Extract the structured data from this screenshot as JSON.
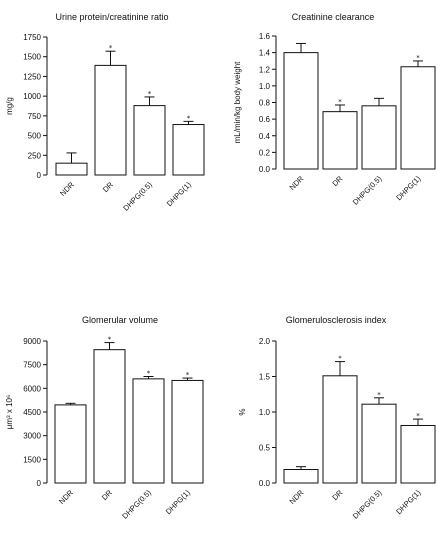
{
  "chart_data": [
    {
      "type": "bar",
      "title": "Urine protein/creatinine ratio",
      "ylabel": "mg/g",
      "xlabel": "",
      "categories": [
        "NDR",
        "DR",
        "DHPG(0.5)",
        "DHPG(1)"
      ],
      "values": [
        150,
        1390,
        880,
        640
      ],
      "errors": [
        130,
        180,
        110,
        40
      ],
      "significance": [
        "",
        "*",
        "*",
        "*"
      ],
      "ylim": [
        0,
        1750
      ],
      "yticks": [
        "0",
        "250",
        "500",
        "750",
        "1000",
        "1250",
        "1500",
        "1750"
      ]
    },
    {
      "type": "bar",
      "title": "Creatinine clearance",
      "ylabel": "mL/min/kg body weight",
      "xlabel": "",
      "categories": [
        "NDR",
        "DR",
        "DHPG(0.5)",
        "DHPG(1)"
      ],
      "values": [
        1.4,
        0.69,
        0.76,
        1.23
      ],
      "errors": [
        0.11,
        0.08,
        0.09,
        0.07
      ],
      "significance": [
        "",
        "*",
        "",
        "*"
      ],
      "ylim": [
        0,
        1.6
      ],
      "yticks": [
        "0.0",
        "0.2",
        "0.4",
        "0.6",
        "0.8",
        "1.0",
        "1.2",
        "1.4",
        "1.6"
      ]
    },
    {
      "type": "bar",
      "title": "Glomerular volume",
      "ylabel": "μm³ x 10⁶",
      "xlabel": "",
      "categories": [
        "NDR",
        "DR",
        "DHPG(0.5)",
        "DHPG(1)"
      ],
      "values": [
        4950,
        8450,
        6600,
        6500
      ],
      "errors": [
        100,
        450,
        150,
        150
      ],
      "significance": [
        "",
        "*",
        "*",
        "*"
      ],
      "ylim": [
        0,
        9000
      ],
      "yticks": [
        "0",
        "1500",
        "3000",
        "4500",
        "6000",
        "7500",
        "9000"
      ]
    },
    {
      "type": "bar",
      "title": "Glomerulosclerosis index",
      "ylabel": "%",
      "xlabel": "",
      "categories": [
        "NDR",
        "DR",
        "DHPG(0.5)",
        "DHPG(1)"
      ],
      "values": [
        0.19,
        1.51,
        1.11,
        0.81
      ],
      "errors": [
        0.04,
        0.2,
        0.09,
        0.09
      ],
      "significance": [
        "",
        "*",
        "*",
        "*"
      ],
      "ylim": [
        0,
        2.0
      ],
      "yticks": [
        "0.0",
        "0.5",
        "1.0",
        "1.5",
        "2.0"
      ]
    }
  ]
}
